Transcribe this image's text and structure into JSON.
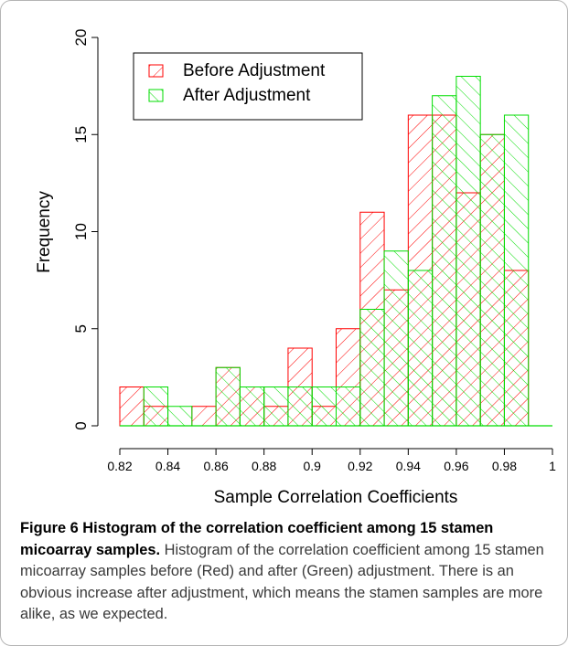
{
  "chart_data": {
    "type": "bar",
    "xlabel": "Sample Correlation Coefficients",
    "ylabel": "Frequency",
    "xlim": [
      0.82,
      1.0
    ],
    "ylim": [
      0,
      20
    ],
    "xticks": [
      "0.82",
      "0.84",
      "0.86",
      "0.88",
      "0.9",
      "0.92",
      "0.94",
      "0.96",
      "0.98",
      "1"
    ],
    "yticks": [
      "0",
      "5",
      "10",
      "15",
      "20"
    ],
    "legend_position": "top-left",
    "bin_width": 0.01,
    "bin_starts": [
      0.82,
      0.83,
      0.84,
      0.85,
      0.86,
      0.87,
      0.88,
      0.89,
      0.9,
      0.91,
      0.92,
      0.93,
      0.94,
      0.95,
      0.96,
      0.97,
      0.98,
      0.99
    ],
    "series": [
      {
        "name": "Before Adjustment",
        "color": "#ff0000",
        "hatch": "forward",
        "values": [
          2,
          1,
          0,
          1,
          3,
          2,
          1,
          4,
          1,
          5,
          11,
          7,
          16,
          16,
          12,
          15,
          8,
          0
        ]
      },
      {
        "name": "After Adjustment",
        "color": "#00dd00",
        "hatch": "backward",
        "values": [
          0,
          2,
          1,
          0,
          3,
          2,
          2,
          2,
          2,
          2,
          6,
          9,
          8,
          17,
          18,
          15,
          16,
          0
        ]
      }
    ]
  },
  "caption": {
    "title": "Figure 6 Histogram of the correlation coefficient among 15 stamen micoarray samples.",
    "body": " Histogram of the correlation coefficient among 15 stamen micoarray samples before (Red) and after (Green) adjustment. There is an obvious increase after adjustment, which means the stamen samples are more alike, as we expected."
  }
}
